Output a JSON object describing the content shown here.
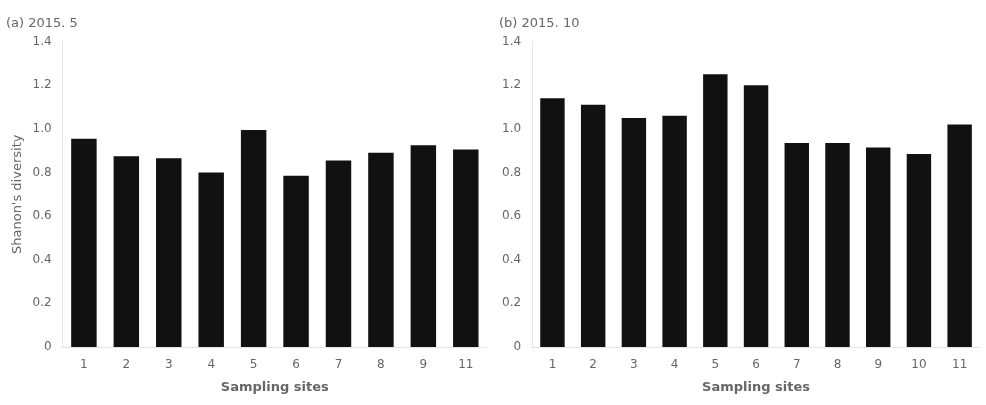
{
  "chart_data": [
    {
      "type": "bar",
      "title": "(a) 2015. 5",
      "categories": [
        "1",
        "2",
        "3",
        "4",
        "5",
        "6",
        "7",
        "8",
        "9",
        "11"
      ],
      "values": [
        0.955,
        0.875,
        0.865,
        0.8,
        0.995,
        0.785,
        0.855,
        0.89,
        0.925,
        0.905
      ],
      "color": "#111111",
      "xlabel": "Sampling sites",
      "ylabel": "Shanon's diversity",
      "ylim": [
        0,
        1.4
      ],
      "yticks": [
        0,
        0.2,
        0.4,
        0.6,
        0.8,
        {
          "value": 1.0,
          "label": "1.0"
        },
        1.2,
        1.4
      ],
      "grid": false
    },
    {
      "type": "bar",
      "title": "(b) 2015. 10",
      "categories": [
        "1",
        "2",
        "3",
        "4",
        "5",
        "6",
        "7",
        "8",
        "9",
        "10",
        "11"
      ],
      "values": [
        1.14,
        1.11,
        1.05,
        1.06,
        1.25,
        1.2,
        0.935,
        0.935,
        0.915,
        0.885,
        1.02
      ],
      "color": "#111111",
      "xlabel": "Sampling sites",
      "ylim": [
        0,
        1.4
      ],
      "yticks": [
        0,
        0.2,
        0.4,
        0.6,
        0.8,
        {
          "value": 1.0,
          "label": "1.0"
        },
        1.2,
        1.4
      ],
      "grid": false
    }
  ]
}
